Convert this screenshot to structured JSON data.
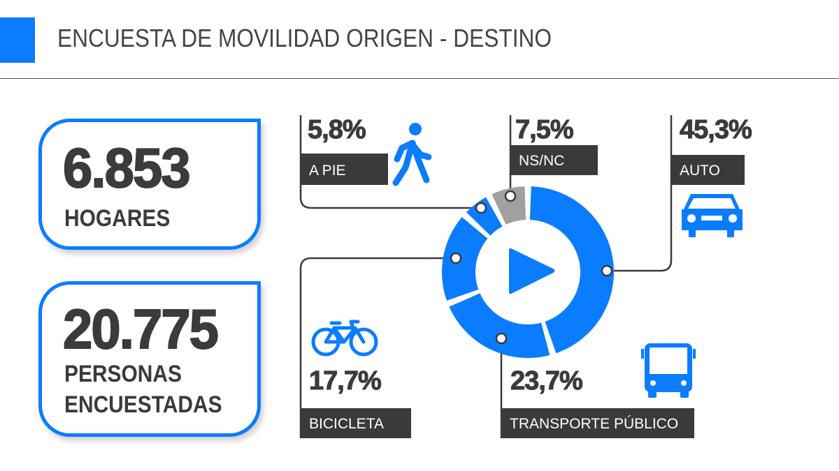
{
  "header": {
    "title": "ENCUESTA DE MOVILIDAD ORIGEN - DESTINO"
  },
  "stats": [
    {
      "value": "6.853",
      "label": "HOGARES"
    },
    {
      "value": "20.775",
      "label_line1": "PERSONAS",
      "label_line2": "ENCUESTADAS"
    }
  ],
  "colors": {
    "accent": "#0a7cff",
    "gray": "#a0a0a0",
    "dark": "#3a3a3c"
  },
  "chart_data": {
    "type": "pie",
    "variant": "donut",
    "categories": [
      "AUTO",
      "TRANSPORTE PÚBLICO",
      "BICICLETA",
      "A PIE",
      "NS/NC"
    ],
    "values": [
      45.3,
      23.7,
      17.7,
      5.8,
      7.5
    ],
    "labels": [
      "45,3%",
      "23,7%",
      "17,7%",
      "5,8%",
      "7,5%"
    ],
    "icons": [
      "car-icon",
      "bus-icon",
      "bicycle-icon",
      "walking-person-icon",
      ""
    ],
    "colors": [
      "#0a7cff",
      "#0a7cff",
      "#0a7cff",
      "#0a7cff",
      "#a0a0a0"
    ],
    "center_icon": "play-icon"
  }
}
